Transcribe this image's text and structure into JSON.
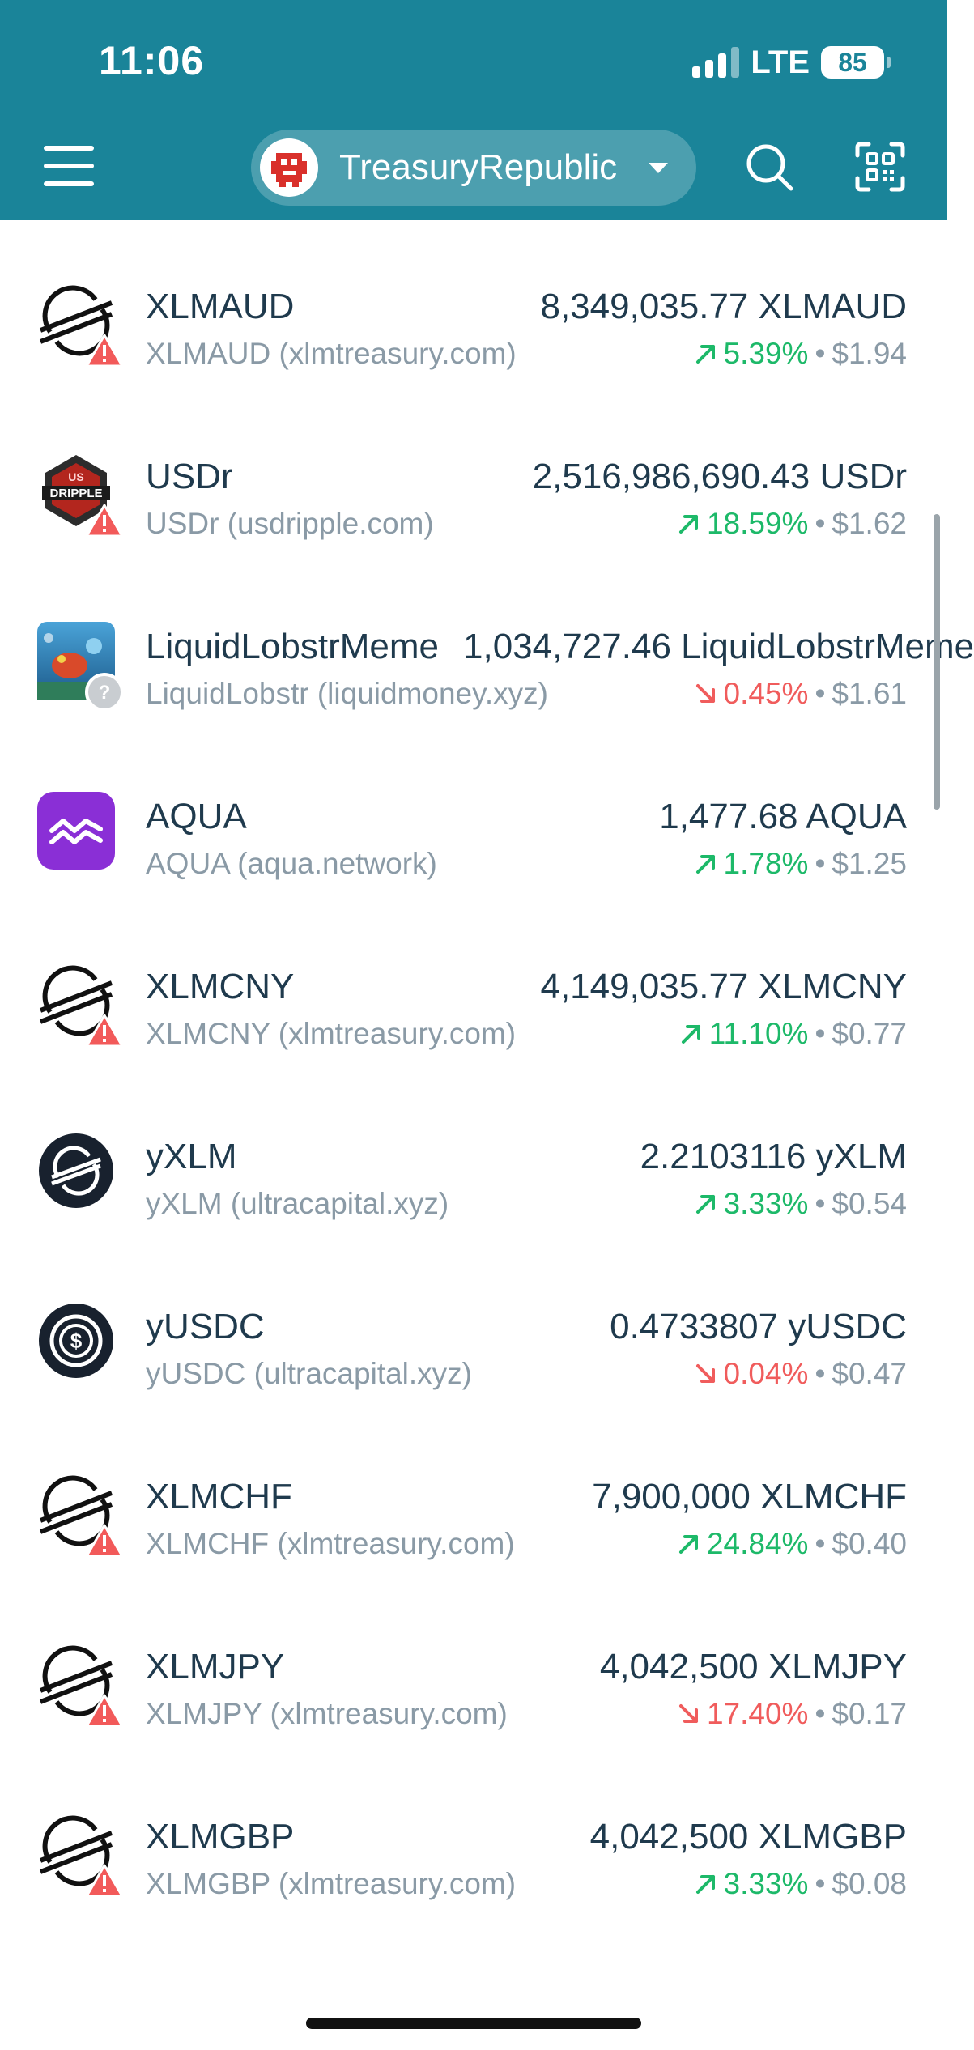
{
  "status_bar": {
    "time": "11:06",
    "network": "LTE",
    "battery": "85"
  },
  "header": {
    "account_name": "TreasuryRepublic"
  },
  "assets": [
    {
      "name": "XLMAUD",
      "subtitle": "XLMAUD (xlmtreasury.com)",
      "amount": "8,349,035.77 XLMAUD",
      "change": "5.39%",
      "direction": "up",
      "price": "$1.94",
      "icon": "stellar-logo-icon",
      "badge": "warning"
    },
    {
      "name": "USDr",
      "subtitle": "USDr (usdripple.com)",
      "amount": "2,516,986,690.43 USDr",
      "change": "18.59%",
      "direction": "up",
      "price": "$1.62",
      "icon": "usdripple-logo-icon",
      "badge": "warning"
    },
    {
      "name": "LiquidLobstrMeme",
      "subtitle": "LiquidLobstr (liquidmoney.xyz)",
      "amount": "1,034,727.46 LiquidLobstrMeme",
      "change": "0.45%",
      "direction": "down",
      "price": "$1.61",
      "icon": "liquidlobstr-image-icon",
      "badge": "unknown"
    },
    {
      "name": "AQUA",
      "subtitle": "AQUA (aqua.network)",
      "amount": "1,477.68 AQUA",
      "change": "1.78%",
      "direction": "up",
      "price": "$1.25",
      "icon": "aqua-logo-icon",
      "badge": "none"
    },
    {
      "name": "XLMCNY",
      "subtitle": "XLMCNY (xlmtreasury.com)",
      "amount": "4,149,035.77 XLMCNY",
      "change": "11.10%",
      "direction": "up",
      "price": "$0.77",
      "icon": "stellar-logo-icon",
      "badge": "warning"
    },
    {
      "name": "yXLM",
      "subtitle": "yXLM (ultracapital.xyz)",
      "amount": "2.2103116 yXLM",
      "change": "3.33%",
      "direction": "up",
      "price": "$0.54",
      "icon": "yxlm-logo-icon",
      "badge": "none"
    },
    {
      "name": "yUSDC",
      "subtitle": "yUSDC (ultracapital.xyz)",
      "amount": "0.4733807 yUSDC",
      "change": "0.04%",
      "direction": "down",
      "price": "$0.47",
      "icon": "yusdc-logo-icon",
      "badge": "none"
    },
    {
      "name": "XLMCHF",
      "subtitle": "XLMCHF (xlmtreasury.com)",
      "amount": "7,900,000 XLMCHF",
      "change": "24.84%",
      "direction": "up",
      "price": "$0.40",
      "icon": "stellar-logo-icon",
      "badge": "warning"
    },
    {
      "name": "XLMJPY",
      "subtitle": "XLMJPY (xlmtreasury.com)",
      "amount": "4,042,500 XLMJPY",
      "change": "17.40%",
      "direction": "down",
      "price": "$0.17",
      "icon": "stellar-logo-icon",
      "badge": "warning"
    },
    {
      "name": "XLMGBP",
      "subtitle": "XLMGBP (xlmtreasury.com)",
      "amount": "4,042,500 XLMGBP",
      "change": "3.33%",
      "direction": "up",
      "price": "$0.08",
      "icon": "stellar-logo-icon",
      "badge": "warning"
    }
  ],
  "separator": "•",
  "colors": {
    "header": "#1a8499",
    "up": "#1db969",
    "down": "#f05c5c",
    "warning": "#f25a5a",
    "aqua": "#8a2fd6"
  }
}
